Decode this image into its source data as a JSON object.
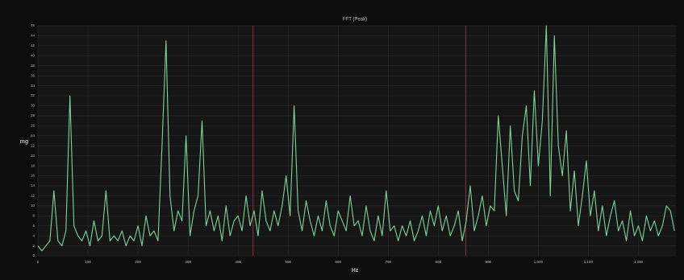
{
  "chart_data": {
    "type": "line",
    "title": "FFT (Peak)",
    "x_label": "Hz",
    "y_label": "mg",
    "x": [
      0,
      8,
      16,
      24,
      32,
      40,
      48,
      56,
      64,
      72,
      80,
      88,
      96,
      104,
      112,
      120,
      128,
      136,
      144,
      152,
      160,
      168,
      176,
      184,
      192,
      200,
      208,
      216,
      224,
      232,
      240,
      248,
      256,
      264,
      272,
      280,
      288,
      296,
      304,
      312,
      320,
      328,
      336,
      344,
      352,
      360,
      368,
      376,
      384,
      392,
      400,
      408,
      416,
      424,
      432,
      440,
      448,
      456,
      464,
      472,
      480,
      488,
      496,
      504,
      512,
      520,
      528,
      536,
      544,
      552,
      560,
      568,
      576,
      584,
      592,
      600,
      608,
      616,
      624,
      632,
      640,
      648,
      656,
      664,
      672,
      680,
      688,
      696,
      704,
      712,
      720,
      728,
      736,
      744,
      752,
      760,
      768,
      776,
      784,
      792,
      800,
      808,
      816,
      824,
      832,
      840,
      848,
      856,
      864,
      872,
      880,
      888,
      896,
      904,
      912,
      920,
      928,
      936,
      944,
      952,
      960,
      968,
      976,
      984,
      992,
      1000,
      1008,
      1016,
      1024,
      1032,
      1040,
      1048,
      1056,
      1064,
      1072,
      1080,
      1088,
      1096,
      1104,
      1112,
      1120,
      1128,
      1136,
      1144,
      1152,
      1160,
      1168,
      1176,
      1184,
      1192,
      1200,
      1208,
      1216,
      1224,
      1232,
      1240,
      1248,
      1256,
      1264,
      1272
    ],
    "series": [
      {
        "name": "FFT",
        "color": "#7fd39a",
        "values": [
          2,
          1,
          2,
          3,
          13,
          3,
          2,
          5,
          32,
          6,
          4,
          3,
          5,
          2,
          7,
          3,
          4,
          13,
          3,
          4,
          3,
          5,
          2,
          4,
          3,
          6,
          2,
          8,
          4,
          5,
          3,
          22,
          43,
          12,
          5,
          9,
          7,
          24,
          4,
          9,
          12,
          27,
          6,
          9,
          5,
          8,
          3,
          10,
          4,
          7,
          8,
          5,
          12,
          6,
          9,
          4,
          13,
          7,
          5,
          9,
          6,
          10,
          16,
          8,
          30,
          9,
          5,
          11,
          7,
          4,
          8,
          5,
          11,
          6,
          4,
          9,
          7,
          5,
          12,
          6,
          7,
          4,
          10,
          5,
          3,
          8,
          4,
          13,
          5,
          6,
          3,
          6,
          4,
          7,
          3,
          5,
          8,
          4,
          9,
          6,
          10,
          5,
          8,
          4,
          6,
          9,
          3,
          7,
          14,
          5,
          8,
          12,
          6,
          10,
          9,
          28,
          18,
          8,
          26,
          13,
          11,
          24,
          30,
          14,
          33,
          18,
          27,
          46,
          12,
          44,
          22,
          16,
          25,
          9,
          17,
          6,
          12,
          19,
          8,
          13,
          5,
          10,
          4,
          8,
          11,
          5,
          7,
          3,
          9,
          4,
          6,
          3,
          8,
          5,
          7,
          4,
          6,
          10,
          9,
          5
        ]
      }
    ],
    "markers": [
      430,
      855
    ],
    "marker_color": "#8a3040",
    "xlim": [
      0,
      1275
    ],
    "ylim": [
      0,
      46
    ],
    "xticks": [
      0,
      100,
      200,
      300,
      400,
      500,
      600,
      700,
      800,
      900,
      {
        "value": 1000,
        "label": "1,000"
      },
      {
        "value": 1100,
        "label": "1,100"
      },
      {
        "value": 1200,
        "label": "1,200"
      }
    ],
    "yticks": [
      0,
      2,
      4,
      6,
      8,
      10,
      12,
      14,
      16,
      18,
      20,
      22,
      24,
      26,
      28,
      30,
      32,
      34,
      36,
      38,
      40,
      42,
      44,
      46
    ],
    "grid": true
  }
}
